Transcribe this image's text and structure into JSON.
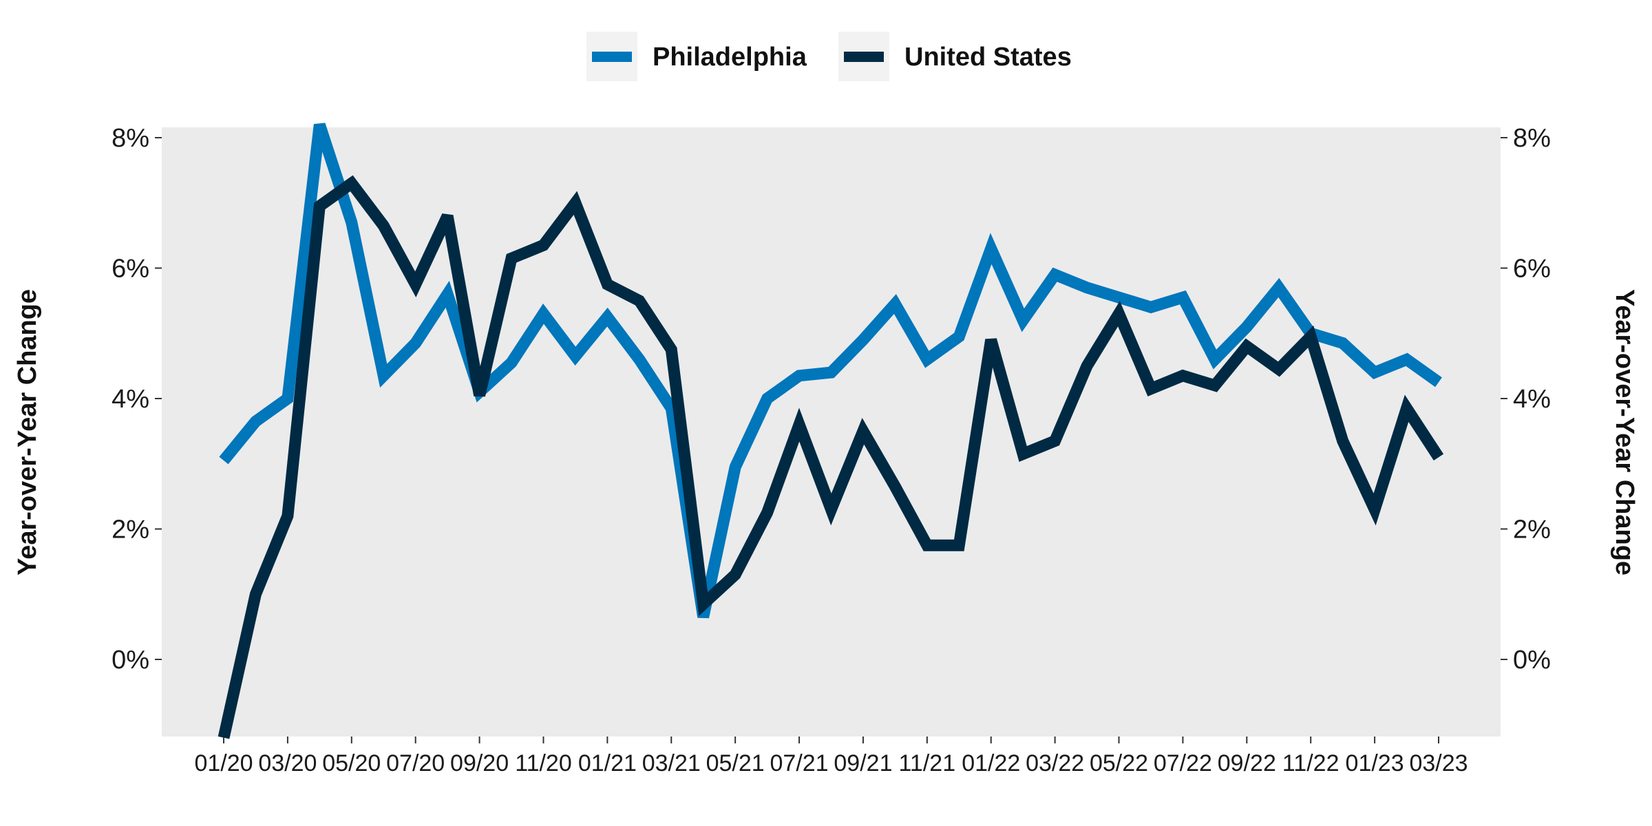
{
  "chart_data": {
    "type": "line",
    "x": [
      "01/20",
      "02/20",
      "03/20",
      "04/20",
      "05/20",
      "06/20",
      "07/20",
      "08/20",
      "09/20",
      "10/20",
      "11/20",
      "12/20",
      "01/21",
      "02/21",
      "03/21",
      "04/21",
      "05/21",
      "06/21",
      "07/21",
      "08/21",
      "09/21",
      "10/21",
      "11/21",
      "12/21",
      "01/22",
      "02/22",
      "03/22",
      "04/22",
      "05/22",
      "06/22",
      "07/22",
      "08/22",
      "09/22",
      "10/22",
      "11/22",
      "12/22",
      "01/23",
      "02/23",
      "03/23"
    ],
    "x_tick_labels": [
      "01/20",
      "03/20",
      "05/20",
      "07/20",
      "09/20",
      "11/20",
      "01/21",
      "03/21",
      "05/21",
      "07/21",
      "09/21",
      "11/21",
      "01/22",
      "03/22",
      "05/22",
      "07/22",
      "09/22",
      "11/22",
      "01/23",
      "03/23"
    ],
    "series": [
      {
        "name": "Philadelphia",
        "color": "#0076BB",
        "values": [
          3.05,
          3.65,
          4.0,
          8.2,
          6.7,
          4.35,
          4.85,
          5.6,
          4.1,
          4.55,
          5.3,
          4.65,
          5.25,
          4.6,
          3.85,
          0.65,
          2.95,
          4.0,
          4.35,
          4.4,
          4.9,
          5.45,
          4.6,
          4.95,
          6.3,
          5.2,
          5.9,
          5.7,
          5.55,
          5.4,
          5.55,
          4.6,
          5.1,
          5.7,
          5.0,
          4.85,
          4.4,
          4.6,
          4.25
        ]
      },
      {
        "name": "United States",
        "color": "#002A43",
        "values": [
          -1.2,
          1.0,
          2.2,
          6.95,
          7.3,
          6.65,
          5.75,
          6.8,
          4.05,
          6.15,
          6.35,
          7.0,
          5.75,
          5.5,
          4.75,
          0.85,
          1.3,
          2.25,
          3.6,
          2.3,
          3.5,
          2.65,
          1.75,
          1.75,
          4.9,
          3.15,
          3.35,
          4.5,
          5.3,
          4.15,
          4.35,
          4.2,
          4.8,
          4.45,
          4.95,
          3.35,
          2.3,
          3.85,
          3.1
        ]
      }
    ],
    "y_ticks": [
      0,
      2,
      4,
      6,
      8
    ],
    "y_tick_labels": [
      "0%",
      "2%",
      "4%",
      "6%",
      "8%"
    ],
    "ylim": [
      -1.15,
      8.15
    ],
    "ylabel_left": "Year-over-Year Change",
    "ylabel_right": "Year-over-Year Change",
    "xlabel": "",
    "title": "",
    "grid": false,
    "legend_position": "top-center",
    "panel_background": "#EBEBEB"
  }
}
